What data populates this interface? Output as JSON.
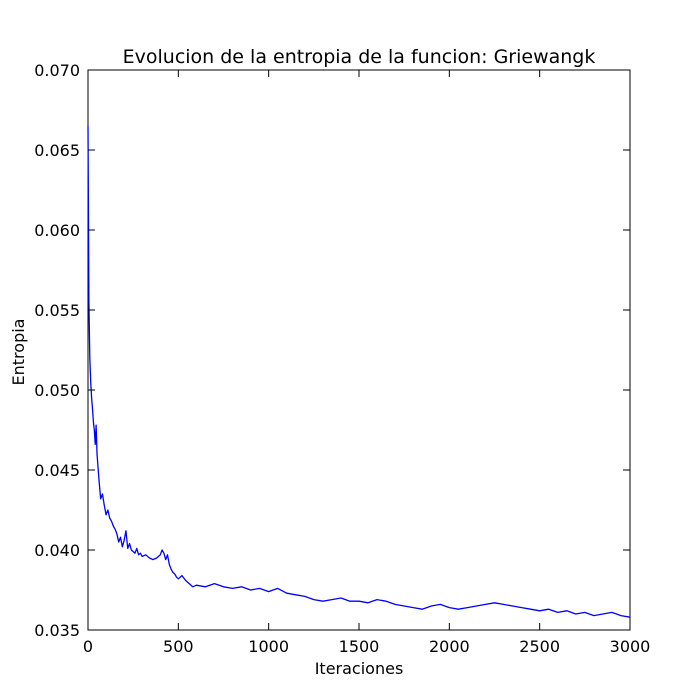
{
  "chart_data": {
    "type": "line",
    "title": "Evolucion de la entropia de la funcion: Griewangk",
    "xlabel": "Iteraciones",
    "ylabel": "Entropia",
    "xlim": [
      0,
      3000
    ],
    "ylim": [
      0.035,
      0.07
    ],
    "x_ticks": [
      "0",
      "500",
      "1000",
      "1500",
      "2000",
      "2500",
      "3000"
    ],
    "x_tick_values": [
      0,
      500,
      1000,
      1500,
      2000,
      2500,
      3000
    ],
    "y_ticks": [
      "0.035",
      "0.040",
      "0.045",
      "0.050",
      "0.055",
      "0.060",
      "0.065",
      "0.070"
    ],
    "y_tick_values": [
      0.035,
      0.04,
      0.045,
      0.05,
      0.055,
      0.06,
      0.065,
      0.07
    ],
    "grid": false,
    "line_color": "#0000ff",
    "series": [
      {
        "x": [
          0,
          5,
          10,
          15,
          20,
          25,
          30,
          35,
          40,
          45,
          50,
          60,
          70,
          80,
          90,
          100,
          110,
          120,
          130,
          140,
          150,
          160,
          170,
          180,
          190,
          200,
          210,
          220,
          230,
          240,
          250,
          260,
          270,
          280,
          290,
          300,
          320,
          340,
          360,
          380,
          400,
          410,
          420,
          430,
          440,
          450,
          460,
          470,
          480,
          490,
          500,
          520,
          540,
          560,
          580,
          600,
          650,
          700,
          750,
          800,
          850,
          900,
          950,
          1000,
          1050,
          1100,
          1150,
          1200,
          1250,
          1300,
          1350,
          1400,
          1450,
          1500,
          1550,
          1600,
          1650,
          1700,
          1750,
          1800,
          1850,
          1900,
          1950,
          2000,
          2050,
          2100,
          2150,
          2200,
          2250,
          2300,
          2350,
          2400,
          2450,
          2500,
          2550,
          2600,
          2650,
          2700,
          2750,
          2800,
          2850,
          2900,
          2950,
          3000
        ],
        "y": [
          0.0665,
          0.0555,
          0.052,
          0.0505,
          0.0495,
          0.0488,
          0.048,
          0.0475,
          0.0466,
          0.0478,
          0.046,
          0.0445,
          0.0432,
          0.0435,
          0.0428,
          0.0422,
          0.0425,
          0.042,
          0.0418,
          0.0415,
          0.0413,
          0.041,
          0.0405,
          0.0408,
          0.0402,
          0.0406,
          0.0412,
          0.0401,
          0.0404,
          0.04,
          0.0399,
          0.0398,
          0.0401,
          0.0397,
          0.0398,
          0.0396,
          0.0397,
          0.0395,
          0.0394,
          0.0395,
          0.0397,
          0.04,
          0.0398,
          0.0394,
          0.0397,
          0.0391,
          0.0388,
          0.0386,
          0.0385,
          0.0383,
          0.0382,
          0.0384,
          0.0381,
          0.0379,
          0.0377,
          0.0378,
          0.0377,
          0.0379,
          0.0377,
          0.0376,
          0.0377,
          0.0375,
          0.0376,
          0.0374,
          0.0376,
          0.0373,
          0.0372,
          0.0371,
          0.0369,
          0.0368,
          0.0369,
          0.037,
          0.0368,
          0.0368,
          0.0367,
          0.0369,
          0.0368,
          0.0366,
          0.0365,
          0.0364,
          0.0363,
          0.0365,
          0.0366,
          0.0364,
          0.0363,
          0.0364,
          0.0365,
          0.0366,
          0.0367,
          0.0366,
          0.0365,
          0.0364,
          0.0363,
          0.0362,
          0.0363,
          0.0361,
          0.0362,
          0.036,
          0.0361,
          0.0359,
          0.036,
          0.0361,
          0.0359,
          0.0358
        ]
      }
    ]
  }
}
